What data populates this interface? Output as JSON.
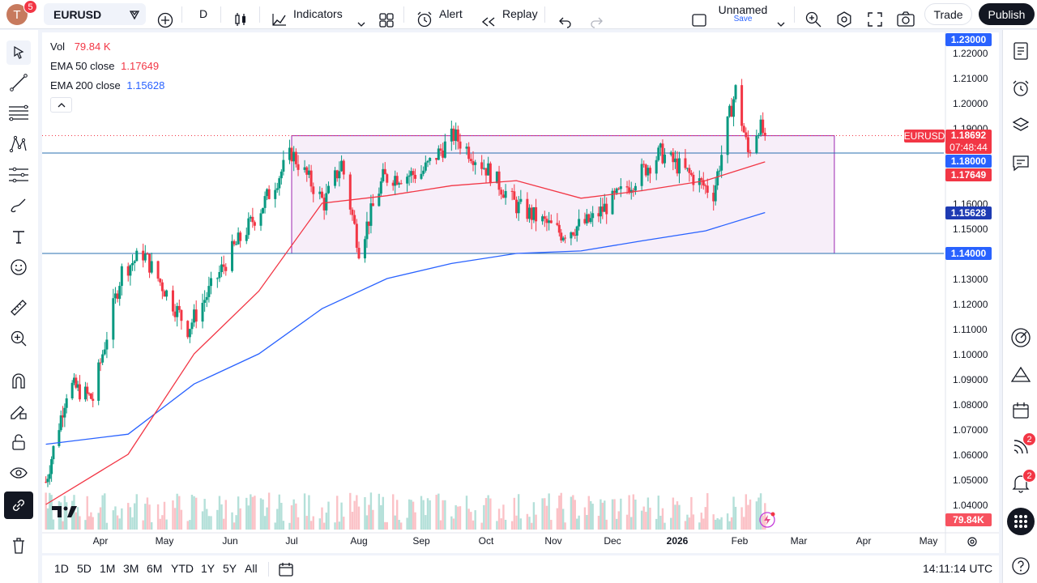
{
  "header": {
    "avatar_letter": "T",
    "avatar_badge": "5",
    "symbol": "EURUSD",
    "interval": "D",
    "indicators_label": "Indicators",
    "alert_label": "Alert",
    "replay_label": "Replay",
    "layout_name": "Unnamed",
    "layout_status": "Save",
    "trade_label": "Trade",
    "publish_label": "Publish"
  },
  "legend": {
    "vol_label": "Vol",
    "vol_value": "79.84 K",
    "ema50_label": "EMA 50 close",
    "ema50_value": "1.17649",
    "ema200_label": "EMA 200 close",
    "ema200_value": "1.15628"
  },
  "price_axis": {
    "ticks": [
      "1.22000",
      "1.21000",
      "1.20000",
      "1.19000",
      "1.16000",
      "1.15000",
      "1.13000",
      "1.12000",
      "1.11000",
      "1.10000",
      "1.09000",
      "1.08000",
      "1.07000",
      "1.06000",
      "1.05000",
      "1.04000"
    ],
    "labels": {
      "top": "1.23000",
      "symbol_tag": "EURUSD",
      "last_price": "1.18692",
      "countdown": "07:48:44",
      "level_high": "1.18000",
      "ema50": "1.17649",
      "ema200": "1.15628",
      "level_low": "1.14000",
      "volume": "79.84K"
    }
  },
  "time_axis": {
    "months": [
      "Apr",
      "May",
      "Jun",
      "Jul",
      "Aug",
      "Sep",
      "Oct",
      "Nov",
      "Dec",
      "2026",
      "Feb",
      "Mar",
      "Apr",
      "May"
    ]
  },
  "bottom_bar": {
    "ranges": [
      "1D",
      "5D",
      "1M",
      "3M",
      "6M",
      "YTD",
      "1Y",
      "5Y",
      "All"
    ],
    "clock": "14:11:14 UTC"
  },
  "right_panel": {
    "signals_badge": "2",
    "notifications_badge": "2"
  },
  "colors": {
    "up": "#089981",
    "down": "#f23645",
    "ema50": "#f23645",
    "ema200": "#2962ff",
    "range_box": "#9c27b0",
    "level_line": "#2a6fb0"
  },
  "chart_data": {
    "type": "candlestick",
    "symbol": "EURUSD",
    "interval": "D",
    "ylim": [
      1.035,
      1.232
    ],
    "x_months": [
      "Apr",
      "May",
      "Jun",
      "Jul",
      "Aug",
      "Sep",
      "Oct",
      "Nov",
      "Dec",
      "2026",
      "Feb",
      "Mar",
      "Apr",
      "May"
    ],
    "key_closes": [
      {
        "date": "2025-03-03",
        "value": 1.049
      },
      {
        "date": "2025-03-15",
        "value": 1.088
      },
      {
        "date": "2025-03-28",
        "value": 1.082
      },
      {
        "date": "2025-04-11",
        "value": 1.133
      },
      {
        "date": "2025-04-21",
        "value": 1.14
      },
      {
        "date": "2025-05-12",
        "value": 1.11
      },
      {
        "date": "2025-06-02",
        "value": 1.141
      },
      {
        "date": "2025-06-16",
        "value": 1.158
      },
      {
        "date": "2025-07-01",
        "value": 1.18
      },
      {
        "date": "2025-07-16",
        "value": 1.16
      },
      {
        "date": "2025-07-24",
        "value": 1.176
      },
      {
        "date": "2025-08-01",
        "value": 1.142
      },
      {
        "date": "2025-08-13",
        "value": 1.17
      },
      {
        "date": "2025-09-01",
        "value": 1.172
      },
      {
        "date": "2025-09-16",
        "value": 1.187
      },
      {
        "date": "2025-10-01",
        "value": 1.174
      },
      {
        "date": "2025-10-15",
        "value": 1.159
      },
      {
        "date": "2025-11-05",
        "value": 1.148
      },
      {
        "date": "2025-11-20",
        "value": 1.153
      },
      {
        "date": "2025-12-05",
        "value": 1.164
      },
      {
        "date": "2025-12-24",
        "value": 1.18
      },
      {
        "date": "2026-01-19",
        "value": 1.164
      },
      {
        "date": "2026-01-27",
        "value": 1.195
      },
      {
        "date": "2026-01-30",
        "value": 1.205
      },
      {
        "date": "2026-02-05",
        "value": 1.18
      },
      {
        "date": "2026-02-10",
        "value": 1.191
      },
      {
        "date": "2026-02-13",
        "value": 1.1869
      }
    ],
    "ema50_points": [
      {
        "date": "2025-03-03",
        "value": 1.04
      },
      {
        "date": "2025-04-14",
        "value": 1.06
      },
      {
        "date": "2025-05-15",
        "value": 1.1
      },
      {
        "date": "2025-06-15",
        "value": 1.125
      },
      {
        "date": "2025-07-15",
        "value": 1.16
      },
      {
        "date": "2025-08-15",
        "value": 1.163
      },
      {
        "date": "2025-09-15",
        "value": 1.167
      },
      {
        "date": "2025-10-15",
        "value": 1.169
      },
      {
        "date": "2025-11-15",
        "value": 1.162
      },
      {
        "date": "2025-12-15",
        "value": 1.165
      },
      {
        "date": "2026-01-15",
        "value": 1.169
      },
      {
        "date": "2026-02-13",
        "value": 1.17649
      }
    ],
    "ema200_points": [
      {
        "date": "2025-03-03",
        "value": 1.064
      },
      {
        "date": "2025-04-14",
        "value": 1.068
      },
      {
        "date": "2025-05-15",
        "value": 1.088
      },
      {
        "date": "2025-06-15",
        "value": 1.1
      },
      {
        "date": "2025-07-15",
        "value": 1.118
      },
      {
        "date": "2025-08-15",
        "value": 1.13
      },
      {
        "date": "2025-09-15",
        "value": 1.136
      },
      {
        "date": "2025-10-15",
        "value": 1.14
      },
      {
        "date": "2025-11-15",
        "value": 1.141
      },
      {
        "date": "2025-12-15",
        "value": 1.145
      },
      {
        "date": "2026-01-15",
        "value": 1.149
      },
      {
        "date": "2026-02-13",
        "value": 1.15628
      }
    ],
    "range_box": {
      "start": "2025-07-01",
      "end": "2026-03-18",
      "top": 1.1869,
      "bottom": 1.14
    },
    "horizontal_levels": [
      1.18,
      1.14
    ],
    "last_price": 1.18692,
    "volume_last": "79.84K"
  }
}
